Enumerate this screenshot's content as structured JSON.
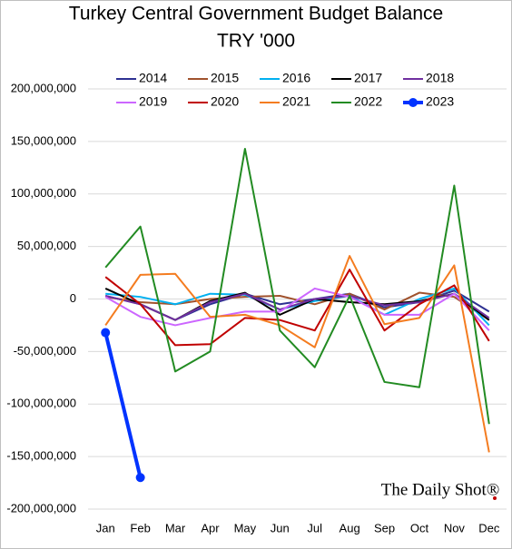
{
  "chart_data": {
    "type": "line",
    "title": "Turkey Central Government Budget Balance",
    "subtitle": "TRY '000",
    "watermark": "The Daily Shot®",
    "categories": [
      "Jan",
      "Feb",
      "Mar",
      "Apr",
      "May",
      "Jun",
      "Jul",
      "Aug",
      "Sep",
      "Oct",
      "Nov",
      "Dec"
    ],
    "series": [
      {
        "name": "2014",
        "color": "#2e3192",
        "values": [
          3000000,
          -5000000,
          -20000000,
          -5000000,
          5000000,
          -5000000,
          0,
          5000000,
          -8000000,
          -3000000,
          8000000,
          -12000000
        ]
      },
      {
        "name": "2015",
        "color": "#a0522d",
        "values": [
          2000000,
          -3000000,
          -5000000,
          0,
          2000000,
          3000000,
          -5000000,
          5000000,
          -10000000,
          6000000,
          2000000,
          -20000000
        ]
      },
      {
        "name": "2016",
        "color": "#00b0f0",
        "values": [
          5000000,
          2000000,
          -5000000,
          5000000,
          4000000,
          -10000000,
          -2000000,
          3000000,
          -15000000,
          0,
          10000000,
          -25000000
        ]
      },
      {
        "name": "2017",
        "color": "#000000",
        "values": [
          10000000,
          -5000000,
          -20000000,
          -2000000,
          6000000,
          -15000000,
          0,
          -3000000,
          -5000000,
          -2000000,
          5000000,
          -20000000
        ]
      },
      {
        "name": "2018",
        "color": "#7030a0",
        "values": [
          3000000,
          -5000000,
          -20000000,
          -3000000,
          5000000,
          -10000000,
          0,
          3000000,
          -6000000,
          -3000000,
          5000000,
          -18000000
        ]
      },
      {
        "name": "2019",
        "color": "#cc66ff",
        "values": [
          2000000,
          -17000000,
          -25000000,
          -18000000,
          -12000000,
          -12000000,
          10000000,
          2000000,
          -15000000,
          -15000000,
          5000000,
          -30000000
        ]
      },
      {
        "name": "2020",
        "color": "#c00000",
        "values": [
          21000000,
          -5000000,
          -44000000,
          -43000000,
          -18000000,
          -20000000,
          -30000000,
          28000000,
          -30000000,
          -5000000,
          13000000,
          -40000000
        ]
      },
      {
        "name": "2021",
        "color": "#f47c20",
        "values": [
          -25000000,
          23000000,
          24000000,
          -17000000,
          -15000000,
          -25000000,
          -46000000,
          41000000,
          -24000000,
          -18000000,
          32000000,
          -146000000
        ]
      },
      {
        "name": "2022",
        "color": "#228b22",
        "values": [
          30000000,
          69000000,
          -69000000,
          -50000000,
          143000000,
          -30000000,
          -65000000,
          3000000,
          -79000000,
          -84000000,
          108000000,
          -119000000
        ]
      },
      {
        "name": "2023",
        "color": "#0033ff",
        "markers": true,
        "values": [
          -32000000,
          -170000000,
          null,
          null,
          null,
          null,
          null,
          null,
          null,
          null,
          null,
          null
        ]
      }
    ],
    "ylim": [
      -200000000,
      200000000
    ],
    "yticks": [
      {
        "value": -200000000,
        "label": "-200,000,000"
      },
      {
        "value": -150000000,
        "label": "-150,000,000"
      },
      {
        "value": -100000000,
        "label": "-100,000,000"
      },
      {
        "value": -50000000,
        "label": "-50,000,000"
      },
      0,
      {
        "value": 50000000,
        "label": "50,000,000"
      },
      {
        "value": 100000000,
        "label": "100,000,000"
      },
      {
        "value": 150000000,
        "label": "150,000,000"
      },
      {
        "value": 200000000,
        "label": "200,000,000"
      }
    ],
    "grid": true
  }
}
